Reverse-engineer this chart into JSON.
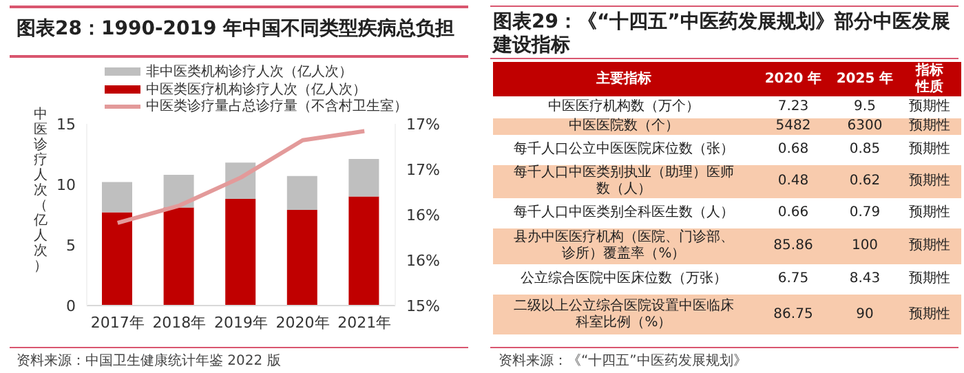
{
  "chart_data": [
    {
      "type": "bar",
      "title": "图表28：1990-2019 年中国不同类型疾病总负担",
      "ylabel": "中医诊疗人次（亿人次）",
      "categories": [
        "2017年",
        "2018年",
        "2019年",
        "2020年",
        "2021年"
      ],
      "stacked": true,
      "legend": "top",
      "grid": false,
      "marker": "none",
      "series": [
        {
          "name": "中医类医疗机构诊疗人次（亿人次）",
          "color": "#c00000",
          "values": [
            7.7,
            8.1,
            8.8,
            7.9,
            9.0
          ]
        },
        {
          "name": "非中医类机构诊疗人次（亿人次）",
          "color": "#bfbfbf",
          "values": [
            2.5,
            2.7,
            3.0,
            2.8,
            3.1
          ]
        },
        {
          "name": "中医类诊疗量占总诊疗量（不含村卫生室）",
          "type": "line",
          "axis": "y2",
          "color": "#e39a9a",
          "values": [
            15.91,
            16.1,
            16.41,
            16.82,
            16.92
          ]
        }
      ],
      "ylim": [
        0,
        15
      ],
      "yticks": [
        0,
        5,
        10,
        15
      ],
      "y2lim": [
        15,
        17
      ],
      "y2ticks": [
        {
          "value": 15,
          "label": "15%"
        },
        {
          "value": 15.5,
          "label": "16%"
        },
        {
          "value": 16,
          "label": "16%"
        },
        {
          "value": 16.5,
          "label": "17%"
        },
        {
          "value": 17,
          "label": "17%"
        }
      ],
      "annotations": [
        "资料来源：中国卫生健康统计年鉴 2022 版"
      ]
    },
    {
      "type": "other",
      "title": "图表29：《“十四五”中医药发展规划》部分中医发展建设指标",
      "categories": [
        "主要指标",
        "2020 年",
        "2025 年",
        "指标性质"
      ],
      "cell_labels": [
        [
          "中医医疗机构数（万个）",
          "7.23",
          "9.5",
          "预期性"
        ],
        [
          "中医医院数（个）",
          "5482",
          "6300",
          "预期性"
        ],
        [
          "每千人口公立中医医院床位数（张）",
          "0.68",
          "0.85",
          "预期性"
        ],
        [
          "每千人口中医类别执业（助理）医师数（人）",
          "0.48",
          "0.62",
          "预期性"
        ],
        [
          "每千人口中医类别全科医生数（人）",
          "0.66",
          "0.79",
          "预期性"
        ],
        [
          "县办中医医疗机构（医院、门诊部、诊所）覆盖率（%）",
          "85.86",
          "100",
          "预期性"
        ],
        [
          "公立综合医院中医床位数（万张）",
          "6.75",
          "8.43",
          "预期性"
        ],
        [
          "二级以上公立综合医院设置中医临床科室比例（%）",
          "86.75",
          "90",
          "预期性"
        ]
      ],
      "annotations": [
        "资料来源：《“十四五”中医药发展规划》"
      ]
    }
  ]
}
